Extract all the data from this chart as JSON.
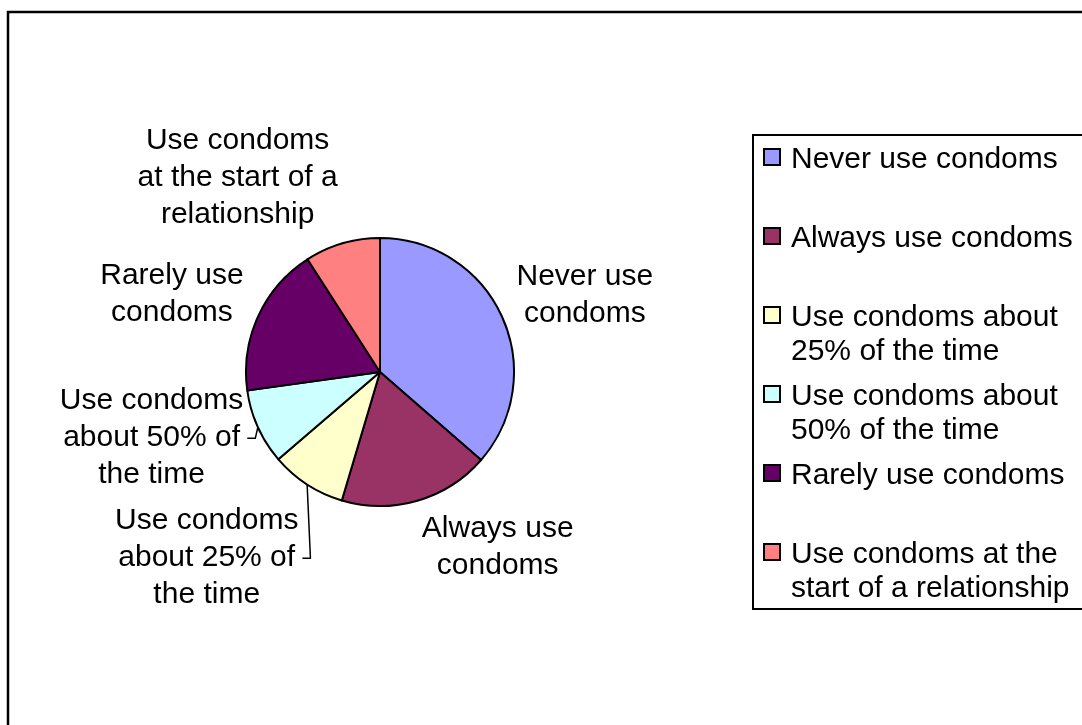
{
  "chart_data": {
    "type": "pie",
    "categories": [
      "Never use condoms",
      "Always use condoms",
      "Use condoms about 25% of the time",
      "Use condoms about 50% of the time",
      "Rarely use condoms",
      "Use condoms at the start of a relationship"
    ],
    "values": [
      36.4,
      18.2,
      9.1,
      9.1,
      18.1,
      9.1
    ],
    "colors": [
      "#9999ff",
      "#993366",
      "#ffffcc",
      "#ccffff",
      "#660066",
      "#ff8080"
    ],
    "legend": "right"
  }
}
